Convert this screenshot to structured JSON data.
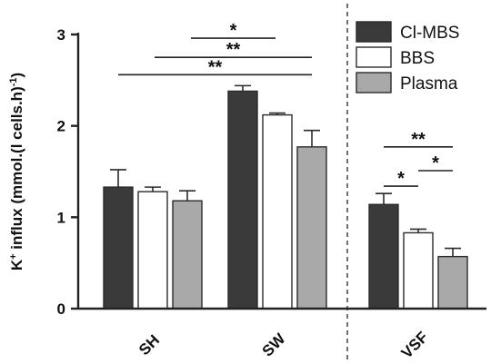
{
  "chart_data": {
    "type": "bar",
    "ylabel": {
      "prefix": "K",
      "superscript1": "+",
      "middle": " influx (mmol.(l cells.h)",
      "superscript2": "-1",
      "suffix": ")"
    },
    "ylim": [
      0,
      3
    ],
    "yticks": [
      0,
      1,
      2,
      3
    ],
    "categories": [
      "SH",
      "SW",
      "VSF"
    ],
    "series": [
      {
        "name": "Cl-MBS",
        "color": "#3a3a3a",
        "values": [
          1.33,
          2.38,
          1.14
        ],
        "errors": [
          0.19,
          0.06,
          0.12
        ]
      },
      {
        "name": "BBS",
        "color": "#ffffff",
        "values": [
          1.28,
          2.12,
          0.83
        ],
        "errors": [
          0.05,
          0.02,
          0.04
        ]
      },
      {
        "name": "Plasma",
        "color": "#a9a9a9",
        "values": [
          1.18,
          1.77,
          0.57
        ],
        "errors": [
          0.11,
          0.18,
          0.09
        ]
      }
    ],
    "legend_position": "top-right",
    "separator": "dashed vertical line between SW and VSF",
    "significance": [
      {
        "label": "**",
        "from": "SH",
        "to": "SW",
        "level": 2.56
      },
      {
        "label": "**",
        "from": "SH",
        "to": "SW",
        "level": 2.75
      },
      {
        "label": "*",
        "from": "SH",
        "to": "SW",
        "level": 2.96
      },
      {
        "label": "**",
        "from": "VSF Cl-MBS",
        "to": "VSF Plasma",
        "level": 1.77
      },
      {
        "label": "*",
        "from": "VSF Cl-MBS",
        "to": "VSF BBS",
        "level": 1.34
      },
      {
        "label": "*",
        "from": "VSF BBS",
        "to": "VSF Plasma",
        "level": 1.51
      }
    ]
  }
}
